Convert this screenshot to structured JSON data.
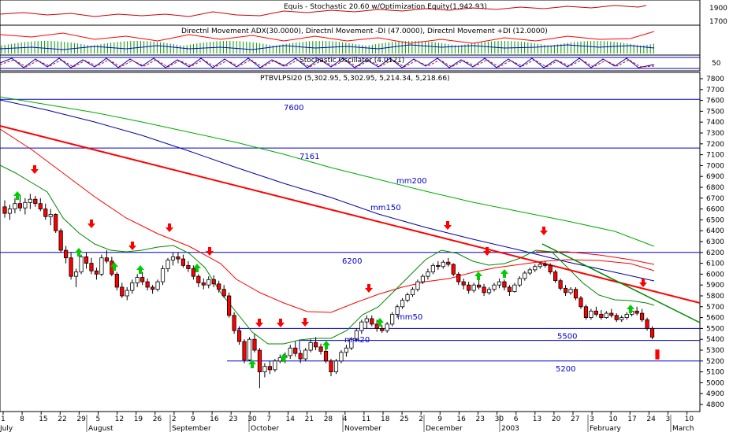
{
  "colors": {
    "up": "#00cc00",
    "down": "#ff0000",
    "blue": "#0000cc",
    "green": "#009900",
    "red": "#ff0000",
    "darkred": "#cc0000"
  },
  "panels": {
    "equity_title": "Equis - Stochastic 20.60  w/Optimization Equity(1,942.93)",
    "dmi_title": "Directnl Movement ADX(30.0000), Directnl Movement -DI (47.0000), Directnl Movement +DI (12.0000)",
    "stoch_title": "Stochastic Oscillator (4.0121)",
    "price_title": "PTBVLPSI20 (5,302.95, 5,302.95, 5,214.34, 5,218.66)",
    "equity_ticks": [
      "1900",
      "1700"
    ],
    "stoch_ticks": [
      "50"
    ]
  },
  "chart_data": {
    "type": "candlestick",
    "title": "PTBVLPSI20 (5,302.95, 5,302.95, 5,214.34, 5,218.66)",
    "ylim": [
      4800,
      7800
    ],
    "y_ticks": [
      "7800",
      "7700",
      "7600",
      "7500",
      "7400",
      "7300",
      "7200",
      "7100",
      "7000",
      "6900",
      "6800",
      "6700",
      "6600",
      "6500",
      "6400",
      "6300",
      "6200",
      "6100",
      "6000",
      "5900",
      "5800",
      "5700",
      "5600",
      "5500",
      "5400",
      "5300",
      "5200",
      "5100",
      "5000",
      "4900",
      "4800"
    ],
    "x_day_ticks": [
      "1",
      "8",
      "15",
      "22",
      "29",
      "5",
      "12",
      "19",
      "26",
      "2",
      "9",
      "16",
      "23",
      "30",
      "7",
      "14",
      "21",
      "28",
      "4",
      "11",
      "18",
      "25",
      "2",
      "9",
      "16",
      "23",
      "30",
      "6",
      "13",
      "20",
      "27",
      "3",
      "10",
      "17",
      "24",
      "3",
      "10"
    ],
    "x_month_labels": [
      "July",
      "August",
      "September",
      "October",
      "November",
      "December",
      "2003",
      "February",
      "March"
    ],
    "horizontal_levels": [
      {
        "label": "7600",
        "value": 7610,
        "color": "#0000cc"
      },
      {
        "label": "7161",
        "value": 7161,
        "color": "#0000cc"
      },
      {
        "label": "6200",
        "value": 6200,
        "color": "#0000cc"
      },
      {
        "label": "5500",
        "value": 5500,
        "color": "#0000cc"
      },
      {
        "label": "",
        "value": 5390,
        "color": "#0000cc"
      },
      {
        "label": "5200",
        "value": 5200,
        "color": "#0000cc"
      }
    ],
    "line_labels": [
      "mm200",
      "mm150",
      "mm50",
      "mm20"
    ],
    "candles": [
      {
        "o": 6620,
        "h": 6680,
        "l": 6520,
        "c": 6560
      },
      {
        "o": 6560,
        "h": 6640,
        "l": 6500,
        "c": 6600
      },
      {
        "o": 6600,
        "h": 6700,
        "l": 6560,
        "c": 6650
      },
      {
        "o": 6650,
        "h": 6720,
        "l": 6580,
        "c": 6610
      },
      {
        "o": 6610,
        "h": 6700,
        "l": 6550,
        "c": 6660
      },
      {
        "o": 6660,
        "h": 6740,
        "l": 6600,
        "c": 6690
      },
      {
        "o": 6690,
        "h": 6720,
        "l": 6620,
        "c": 6650
      },
      {
        "o": 6650,
        "h": 6700,
        "l": 6580,
        "c": 6600
      },
      {
        "o": 6600,
        "h": 6650,
        "l": 6500,
        "c": 6530
      },
      {
        "o": 6530,
        "h": 6600,
        "l": 6450,
        "c": 6550
      },
      {
        "o": 6550,
        "h": 6560,
        "l": 6380,
        "c": 6400
      },
      {
        "o": 6400,
        "h": 6420,
        "l": 6200,
        "c": 6220
      },
      {
        "o": 6220,
        "h": 6260,
        "l": 6100,
        "c": 6150
      },
      {
        "o": 6150,
        "h": 6200,
        "l": 5950,
        "c": 5980
      },
      {
        "o": 5980,
        "h": 6050,
        "l": 5880,
        "c": 6020
      },
      {
        "o": 6020,
        "h": 6180,
        "l": 6000,
        "c": 6160
      },
      {
        "o": 6160,
        "h": 6200,
        "l": 6050,
        "c": 6100
      },
      {
        "o": 6100,
        "h": 6150,
        "l": 6000,
        "c": 6030
      },
      {
        "o": 6030,
        "h": 6060,
        "l": 5950,
        "c": 6000
      },
      {
        "o": 6000,
        "h": 6180,
        "l": 5980,
        "c": 6150
      },
      {
        "o": 6150,
        "h": 6220,
        "l": 6100,
        "c": 6120
      },
      {
        "o": 6120,
        "h": 6160,
        "l": 5980,
        "c": 6000
      },
      {
        "o": 6000,
        "h": 6020,
        "l": 5850,
        "c": 5880
      },
      {
        "o": 5880,
        "h": 5920,
        "l": 5780,
        "c": 5800
      },
      {
        "o": 5800,
        "h": 5880,
        "l": 5760,
        "c": 5850
      },
      {
        "o": 5850,
        "h": 5950,
        "l": 5820,
        "c": 5920
      },
      {
        "o": 5920,
        "h": 6000,
        "l": 5880,
        "c": 5970
      },
      {
        "o": 5970,
        "h": 6020,
        "l": 5900,
        "c": 5930
      },
      {
        "o": 5930,
        "h": 5960,
        "l": 5850,
        "c": 5880
      },
      {
        "o": 5880,
        "h": 5900,
        "l": 5820,
        "c": 5860
      },
      {
        "o": 5860,
        "h": 5950,
        "l": 5840,
        "c": 5930
      },
      {
        "o": 5930,
        "h": 6080,
        "l": 5900,
        "c": 6050
      },
      {
        "o": 6050,
        "h": 6150,
        "l": 6020,
        "c": 6130
      },
      {
        "o": 6130,
        "h": 6200,
        "l": 6080,
        "c": 6160
      },
      {
        "o": 6160,
        "h": 6200,
        "l": 6100,
        "c": 6140
      },
      {
        "o": 6140,
        "h": 6180,
        "l": 6060,
        "c": 6080
      },
      {
        "o": 6080,
        "h": 6120,
        "l": 6020,
        "c": 6050
      },
      {
        "o": 6050,
        "h": 6080,
        "l": 5950,
        "c": 5980
      },
      {
        "o": 5980,
        "h": 6000,
        "l": 5880,
        "c": 5920
      },
      {
        "o": 5920,
        "h": 5960,
        "l": 5860,
        "c": 5900
      },
      {
        "o": 5900,
        "h": 5980,
        "l": 5870,
        "c": 5950
      },
      {
        "o": 5950,
        "h": 5990,
        "l": 5880,
        "c": 5910
      },
      {
        "o": 5910,
        "h": 5940,
        "l": 5830,
        "c": 5860
      },
      {
        "o": 5860,
        "h": 5900,
        "l": 5780,
        "c": 5800
      },
      {
        "o": 5800,
        "h": 5830,
        "l": 5600,
        "c": 5620
      },
      {
        "o": 5620,
        "h": 5650,
        "l": 5450,
        "c": 5480
      },
      {
        "o": 5480,
        "h": 5520,
        "l": 5350,
        "c": 5380
      },
      {
        "o": 5380,
        "h": 5400,
        "l": 5180,
        "c": 5210
      },
      {
        "o": 5210,
        "h": 5420,
        "l": 5200,
        "c": 5400
      },
      {
        "o": 5400,
        "h": 5450,
        "l": 5280,
        "c": 5300
      },
      {
        "o": 5300,
        "h": 5320,
        "l": 4950,
        "c": 5100
      },
      {
        "o": 5100,
        "h": 5180,
        "l": 5050,
        "c": 5150
      },
      {
        "o": 5150,
        "h": 5200,
        "l": 5080,
        "c": 5120
      },
      {
        "o": 5120,
        "h": 5220,
        "l": 5100,
        "c": 5200
      },
      {
        "o": 5200,
        "h": 5260,
        "l": 5180,
        "c": 5230
      },
      {
        "o": 5230,
        "h": 5280,
        "l": 5180,
        "c": 5250
      },
      {
        "o": 5250,
        "h": 5350,
        "l": 5220,
        "c": 5320
      },
      {
        "o": 5320,
        "h": 5380,
        "l": 5240,
        "c": 5270
      },
      {
        "o": 5270,
        "h": 5300,
        "l": 5180,
        "c": 5220
      },
      {
        "o": 5220,
        "h": 5320,
        "l": 5200,
        "c": 5300
      },
      {
        "o": 5300,
        "h": 5400,
        "l": 5280,
        "c": 5370
      },
      {
        "o": 5370,
        "h": 5420,
        "l": 5300,
        "c": 5330
      },
      {
        "o": 5330,
        "h": 5360,
        "l": 5260,
        "c": 5290
      },
      {
        "o": 5290,
        "h": 5310,
        "l": 5180,
        "c": 5200
      },
      {
        "o": 5200,
        "h": 5220,
        "l": 5060,
        "c": 5100
      },
      {
        "o": 5100,
        "h": 5220,
        "l": 5080,
        "c": 5200
      },
      {
        "o": 5200,
        "h": 5300,
        "l": 5180,
        "c": 5280
      },
      {
        "o": 5280,
        "h": 5350,
        "l": 5240,
        "c": 5320
      },
      {
        "o": 5320,
        "h": 5420,
        "l": 5300,
        "c": 5400
      },
      {
        "o": 5400,
        "h": 5500,
        "l": 5380,
        "c": 5480
      },
      {
        "o": 5480,
        "h": 5580,
        "l": 5450,
        "c": 5560
      },
      {
        "o": 5560,
        "h": 5620,
        "l": 5500,
        "c": 5590
      },
      {
        "o": 5590,
        "h": 5620,
        "l": 5520,
        "c": 5540
      },
      {
        "o": 5540,
        "h": 5580,
        "l": 5470,
        "c": 5500
      },
      {
        "o": 5500,
        "h": 5530,
        "l": 5460,
        "c": 5480
      },
      {
        "o": 5480,
        "h": 5560,
        "l": 5460,
        "c": 5540
      },
      {
        "o": 5540,
        "h": 5650,
        "l": 5520,
        "c": 5630
      },
      {
        "o": 5630,
        "h": 5720,
        "l": 5600,
        "c": 5700
      },
      {
        "o": 5700,
        "h": 5780,
        "l": 5680,
        "c": 5760
      },
      {
        "o": 5760,
        "h": 5830,
        "l": 5740,
        "c": 5810
      },
      {
        "o": 5810,
        "h": 5880,
        "l": 5790,
        "c": 5860
      },
      {
        "o": 5860,
        "h": 5950,
        "l": 5840,
        "c": 5930
      },
      {
        "o": 5930,
        "h": 6000,
        "l": 5910,
        "c": 5980
      },
      {
        "o": 5980,
        "h": 6050,
        "l": 5950,
        "c": 6020
      },
      {
        "o": 6020,
        "h": 6100,
        "l": 6000,
        "c": 6080
      },
      {
        "o": 6080,
        "h": 6120,
        "l": 6040,
        "c": 6070
      },
      {
        "o": 6070,
        "h": 6130,
        "l": 6050,
        "c": 6110
      },
      {
        "o": 6110,
        "h": 6150,
        "l": 6070,
        "c": 6090
      },
      {
        "o": 6090,
        "h": 6100,
        "l": 5980,
        "c": 6000
      },
      {
        "o": 6000,
        "h": 6020,
        "l": 5900,
        "c": 5930
      },
      {
        "o": 5930,
        "h": 5960,
        "l": 5860,
        "c": 5900
      },
      {
        "o": 5900,
        "h": 5930,
        "l": 5820,
        "c": 5850
      },
      {
        "o": 5850,
        "h": 5920,
        "l": 5830,
        "c": 5900
      },
      {
        "o": 5900,
        "h": 5950,
        "l": 5860,
        "c": 5880
      },
      {
        "o": 5880,
        "h": 5910,
        "l": 5800,
        "c": 5830
      },
      {
        "o": 5830,
        "h": 5880,
        "l": 5810,
        "c": 5860
      },
      {
        "o": 5860,
        "h": 5920,
        "l": 5840,
        "c": 5900
      },
      {
        "o": 5900,
        "h": 5960,
        "l": 5870,
        "c": 5930
      },
      {
        "o": 5930,
        "h": 5950,
        "l": 5850,
        "c": 5880
      },
      {
        "o": 5880,
        "h": 5900,
        "l": 5800,
        "c": 5840
      },
      {
        "o": 5840,
        "h": 5920,
        "l": 5830,
        "c": 5900
      },
      {
        "o": 5900,
        "h": 5980,
        "l": 5880,
        "c": 5960
      },
      {
        "o": 5960,
        "h": 6030,
        "l": 5940,
        "c": 6010
      },
      {
        "o": 6010,
        "h": 6060,
        "l": 5990,
        "c": 6040
      },
      {
        "o": 6040,
        "h": 6090,
        "l": 6020,
        "c": 6070
      },
      {
        "o": 6070,
        "h": 6110,
        "l": 6050,
        "c": 6090
      },
      {
        "o": 6090,
        "h": 6120,
        "l": 6060,
        "c": 6080
      },
      {
        "o": 6080,
        "h": 6100,
        "l": 6000,
        "c": 6020
      },
      {
        "o": 6020,
        "h": 6040,
        "l": 5920,
        "c": 5940
      },
      {
        "o": 5940,
        "h": 5960,
        "l": 5850,
        "c": 5870
      },
      {
        "o": 5870,
        "h": 5900,
        "l": 5800,
        "c": 5830
      },
      {
        "o": 5830,
        "h": 5880,
        "l": 5810,
        "c": 5860
      },
      {
        "o": 5860,
        "h": 5880,
        "l": 5760,
        "c": 5780
      },
      {
        "o": 5780,
        "h": 5800,
        "l": 5680,
        "c": 5700
      },
      {
        "o": 5700,
        "h": 5720,
        "l": 5580,
        "c": 5600
      },
      {
        "o": 5600,
        "h": 5680,
        "l": 5580,
        "c": 5660
      },
      {
        "o": 5660,
        "h": 5700,
        "l": 5610,
        "c": 5630
      },
      {
        "o": 5630,
        "h": 5670,
        "l": 5580,
        "c": 5600
      },
      {
        "o": 5600,
        "h": 5660,
        "l": 5590,
        "c": 5640
      },
      {
        "o": 5640,
        "h": 5680,
        "l": 5600,
        "c": 5620
      },
      {
        "o": 5620,
        "h": 5640,
        "l": 5560,
        "c": 5580
      },
      {
        "o": 5580,
        "h": 5620,
        "l": 5560,
        "c": 5600
      },
      {
        "o": 5600,
        "h": 5650,
        "l": 5580,
        "c": 5630
      },
      {
        "o": 5630,
        "h": 5680,
        "l": 5610,
        "c": 5660
      },
      {
        "o": 5660,
        "h": 5700,
        "l": 5620,
        "c": 5640
      },
      {
        "o": 5640,
        "h": 5680,
        "l": 5560,
        "c": 5580
      },
      {
        "o": 5580,
        "h": 5600,
        "l": 5480,
        "c": 5500
      },
      {
        "o": 5500,
        "h": 5520,
        "l": 5400,
        "c": 5420
      },
      {
        "o": 5302.95,
        "h": 5302.95,
        "l": 5214.34,
        "c": 5218.66
      }
    ]
  }
}
